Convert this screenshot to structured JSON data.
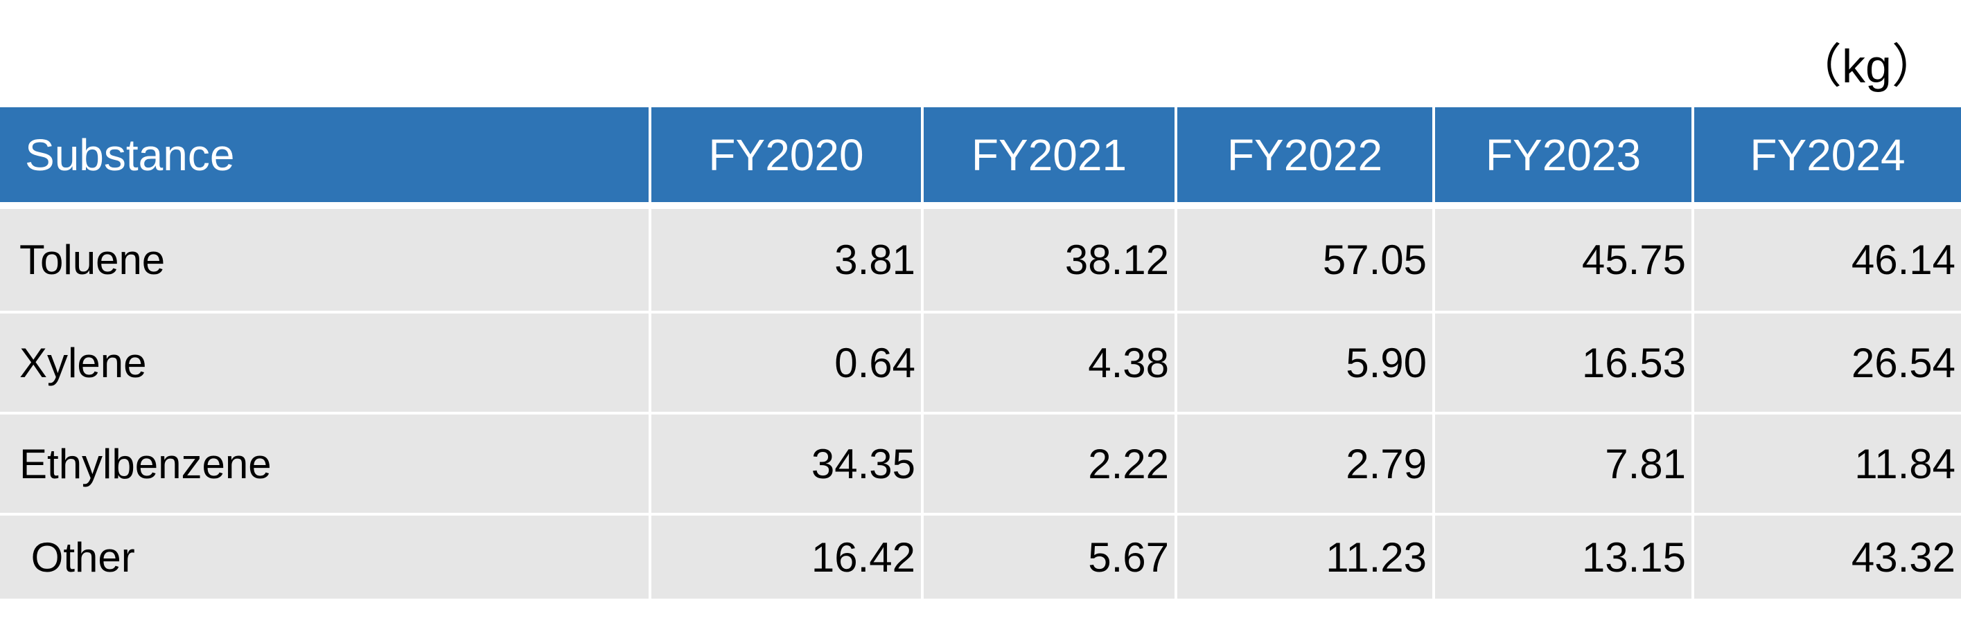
{
  "unit": "（kg）",
  "table": {
    "headers": [
      "Substance",
      "FY2020",
      "FY2021",
      "FY2022",
      "FY2023",
      "FY2024"
    ],
    "rows": [
      {
        "name": "Toluene",
        "values": [
          "3.81",
          "38.12",
          "57.05",
          "45.75",
          "46.14"
        ]
      },
      {
        "name": "Xylene",
        "values": [
          "0.64",
          "4.38",
          "5.90",
          "16.53",
          "26.54"
        ]
      },
      {
        "name": "Ethylbenzene",
        "values": [
          "34.35",
          "2.22",
          "2.79",
          "7.81",
          "11.84"
        ]
      },
      {
        "name": " Other",
        "values": [
          "16.42",
          "5.67",
          "11.23",
          "13.15",
          "43.32"
        ]
      }
    ]
  },
  "colors": {
    "header_bg": "#2e74b5",
    "header_text": "#ffffff",
    "cell_bg": "#e6e6e6",
    "cell_text": "#000000"
  }
}
